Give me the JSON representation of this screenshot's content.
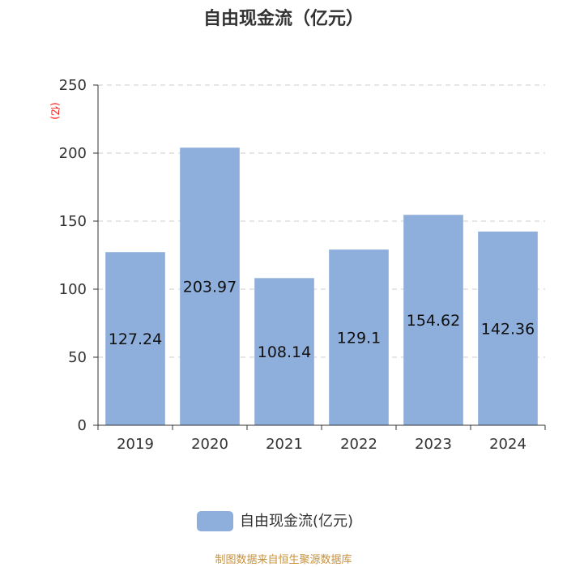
{
  "chart_data": {
    "type": "bar",
    "title": "自由现金流（亿元）",
    "unit_label": "(亿)",
    "categories": [
      "2019",
      "2020",
      "2021",
      "2022",
      "2023",
      "2024"
    ],
    "series": [
      {
        "name": "自由现金流(亿元)",
        "values": [
          127.24,
          203.97,
          108.14,
          129.1,
          154.62,
          142.36
        ],
        "value_labels": [
          "127.24",
          "203.97",
          "108.14",
          "129.1",
          "154.62",
          "142.36"
        ],
        "color": "#8eaedb"
      }
    ],
    "yticks": [
      "0",
      "50",
      "100",
      "150",
      "200",
      "250"
    ],
    "ylim": [
      0,
      250
    ],
    "grid": true,
    "legend_position": "bottom-center"
  },
  "source": "制图数据来自恒生聚源数据库"
}
